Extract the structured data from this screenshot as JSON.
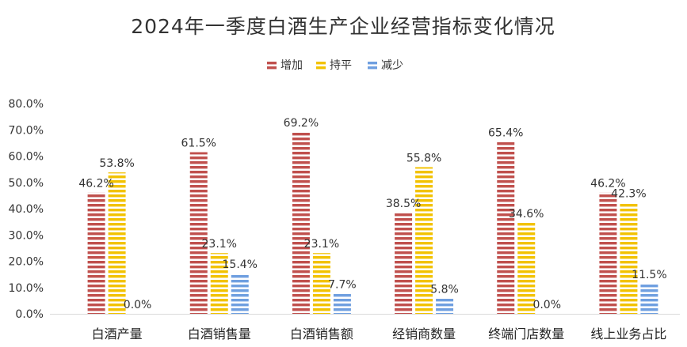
{
  "chart_data": {
    "type": "bar",
    "title": "2024年一季度白酒生产企业经营指标变化情况",
    "xlabel": "",
    "ylabel": "",
    "ylim": [
      0,
      80
    ],
    "yticks": [
      "0.0%",
      "10.0%",
      "20.0%",
      "30.0%",
      "40.0%",
      "50.0%",
      "60.0%",
      "70.0%",
      "80.0%"
    ],
    "legend_position": "top",
    "grid": false,
    "categories": [
      "白酒产量",
      "白酒销售量",
      "白酒销售额",
      "经销商数量",
      "终端门店数量",
      "线上业务占比"
    ],
    "series": [
      {
        "name": "增加",
        "color": "#c0504d",
        "values": [
          46.2,
          61.5,
          69.2,
          38.5,
          65.4,
          46.2
        ],
        "labels": [
          "46.2%",
          "61.5%",
          "69.2%",
          "38.5%",
          "65.4%",
          "46.2%"
        ]
      },
      {
        "name": "持平",
        "color": "#f2c200",
        "values": [
          53.8,
          23.1,
          23.1,
          55.8,
          34.6,
          42.3
        ],
        "labels": [
          "53.8%",
          "23.1%",
          "23.1%",
          "55.8%",
          "34.6%",
          "42.3%"
        ]
      },
      {
        "name": "减少",
        "color": "#6f9fe0",
        "values": [
          0.0,
          15.4,
          7.7,
          5.8,
          0.0,
          11.5
        ],
        "labels": [
          "0.0%",
          "15.4%",
          "7.7%",
          "5.8%",
          "0.0%",
          "11.5%"
        ]
      }
    ]
  }
}
